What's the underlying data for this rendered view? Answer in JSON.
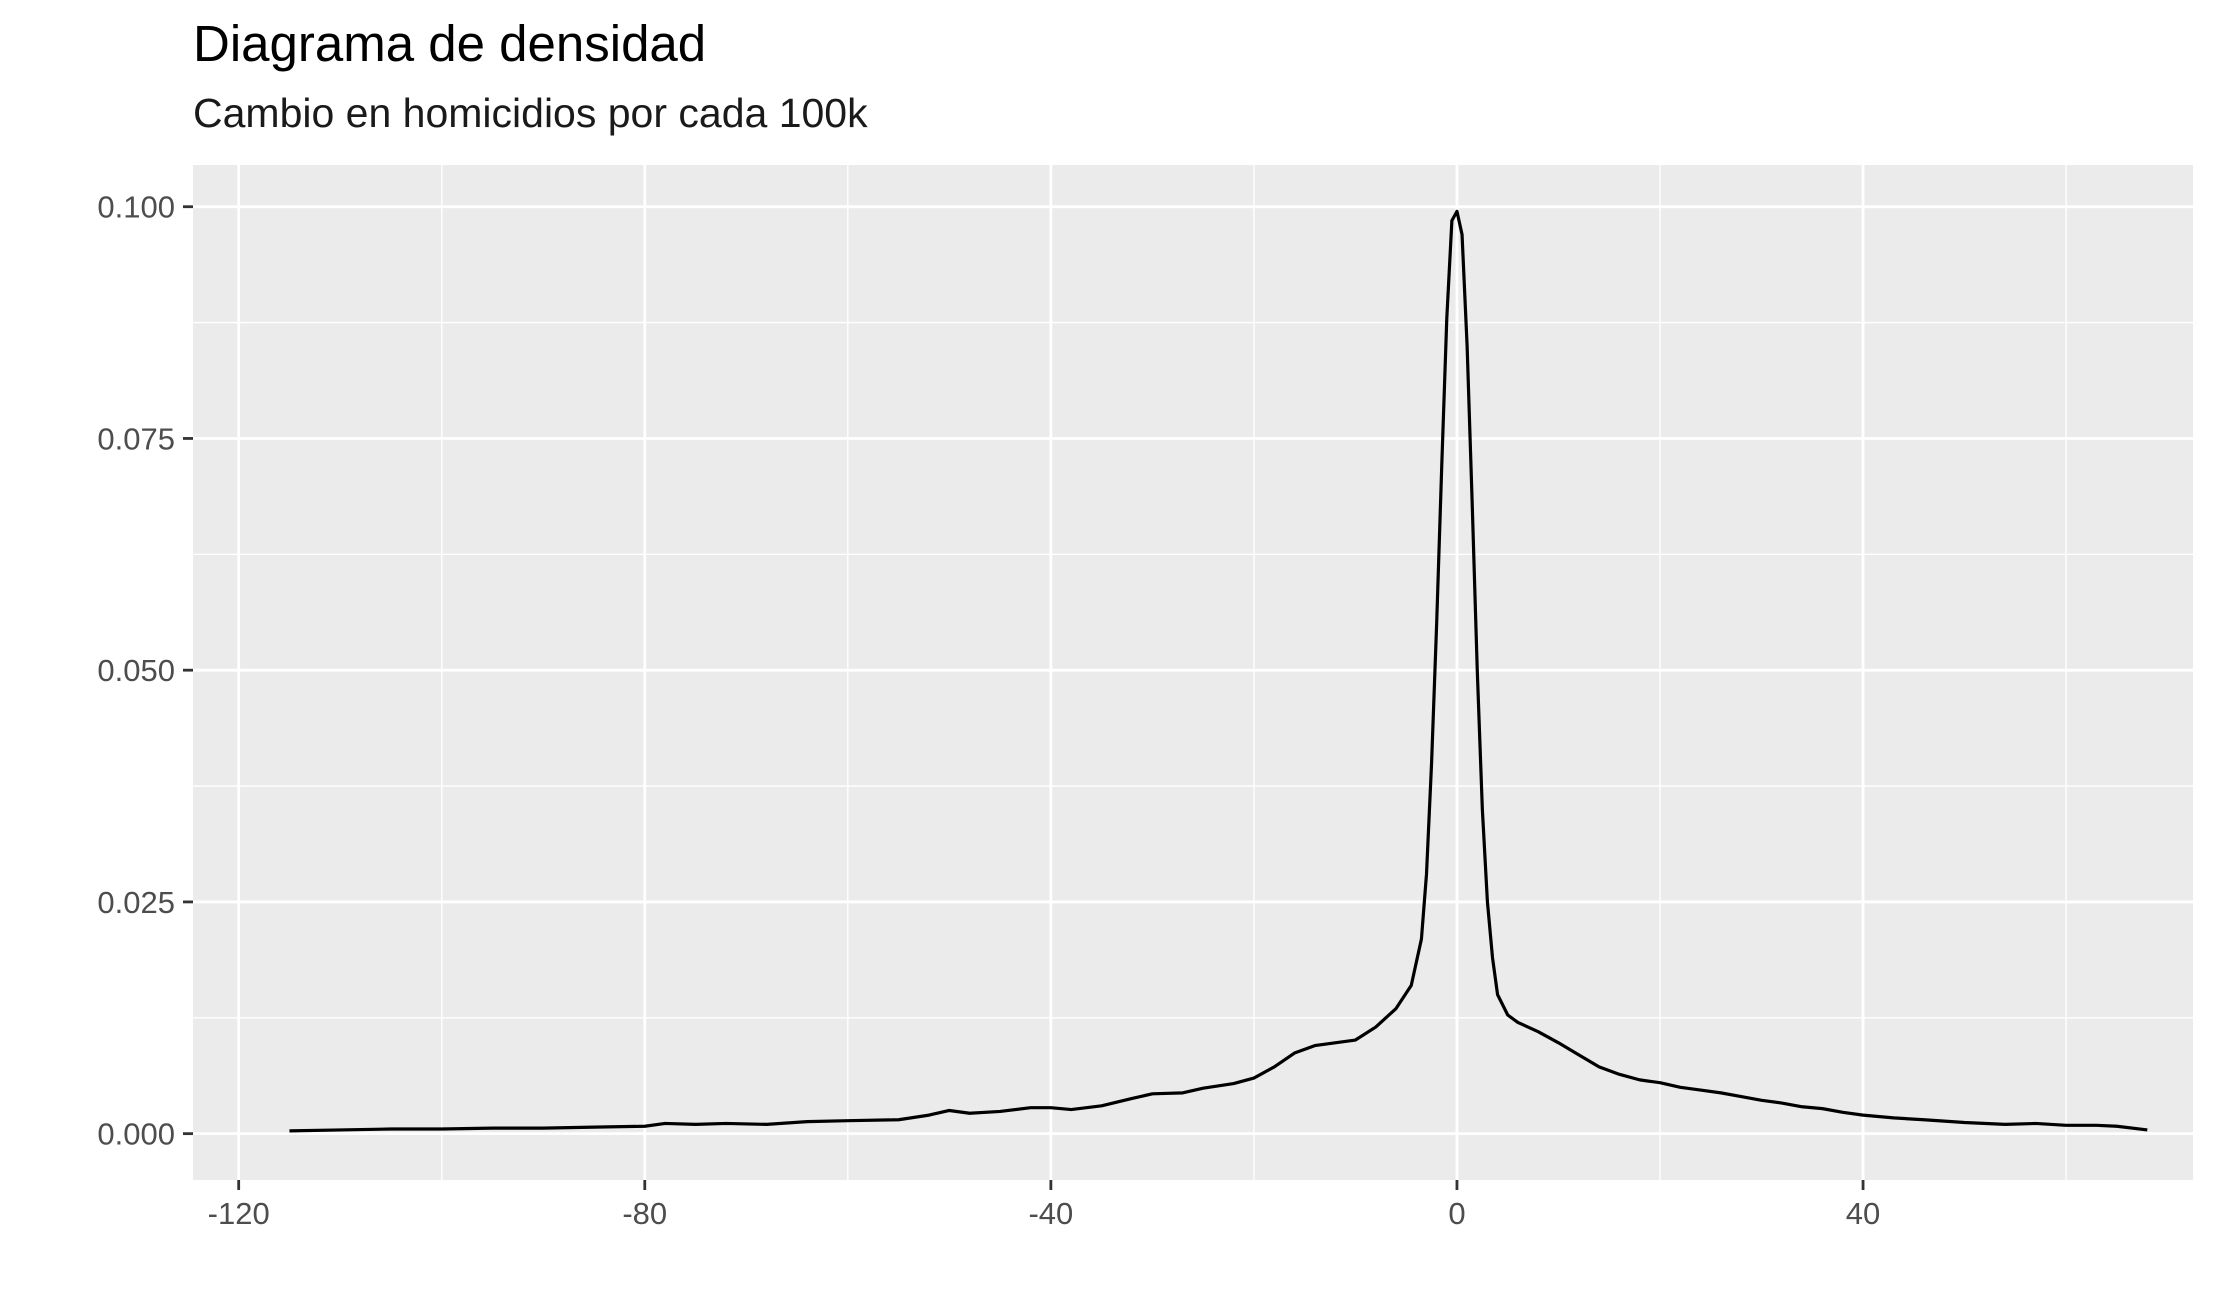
{
  "title": "Diagrama de densidad",
  "subtitle": "Cambio en homicidios por cada 100k",
  "chart_data": {
    "type": "line",
    "title": "Diagrama de densidad",
    "subtitle": "Cambio en homicidios por cada 100k",
    "xlabel": "",
    "ylabel": "",
    "xlim": [
      -124.5,
      72.5
    ],
    "ylim": [
      -0.005,
      0.1045
    ],
    "x_ticks": [
      -120,
      -80,
      -40,
      0,
      40
    ],
    "x_tick_labels": [
      "-120",
      "-80",
      "-40",
      "0",
      "40"
    ],
    "y_ticks": [
      0.0,
      0.025,
      0.05,
      0.075,
      0.1
    ],
    "y_tick_labels": [
      "0.000",
      "0.025",
      "0.050",
      "0.075",
      "0.100"
    ],
    "grid": true,
    "background": "#ebebeb",
    "line_color": "#000000",
    "series": [
      {
        "x": [
          -115,
          -110,
          -105,
          -100,
          -95,
          -90,
          -85,
          -80,
          -78,
          -75,
          -72,
          -68,
          -64,
          -60,
          -55,
          -52,
          -50,
          -48,
          -45,
          -42,
          -40,
          -38,
          -35,
          -32,
          -30,
          -27,
          -25,
          -22,
          -20,
          -18,
          -16,
          -14,
          -12,
          -10,
          -8,
          -6,
          -4.5,
          -3.5,
          -3,
          -2.5,
          -2,
          -1.5,
          -1,
          -0.5,
          0,
          0.5,
          1,
          1.5,
          2,
          2.5,
          3,
          3.5,
          4,
          5,
          6,
          8,
          10,
          12,
          14,
          16,
          18,
          20,
          22,
          24,
          26,
          28,
          30,
          32,
          34,
          36,
          38,
          40,
          43,
          46,
          50,
          54,
          57,
          60,
          63,
          65,
          68
        ],
        "y": [
          0.0003,
          0.0004,
          0.0005,
          0.0005,
          0.0006,
          0.0006,
          0.0007,
          0.0008,
          0.0011,
          0.001,
          0.0011,
          0.001,
          0.0013,
          0.0014,
          0.0015,
          0.002,
          0.0025,
          0.0022,
          0.0024,
          0.0028,
          0.0028,
          0.0026,
          0.003,
          0.0038,
          0.0043,
          0.0044,
          0.0049,
          0.0054,
          0.006,
          0.0072,
          0.0087,
          0.0095,
          0.0098,
          0.0101,
          0.0115,
          0.0135,
          0.016,
          0.021,
          0.028,
          0.04,
          0.055,
          0.072,
          0.088,
          0.0985,
          0.0995,
          0.097,
          0.085,
          0.068,
          0.05,
          0.035,
          0.025,
          0.019,
          0.015,
          0.0128,
          0.012,
          0.011,
          0.0098,
          0.0085,
          0.0072,
          0.0064,
          0.0058,
          0.0055,
          0.005,
          0.0047,
          0.0044,
          0.004,
          0.0036,
          0.0033,
          0.0029,
          0.0027,
          0.0023,
          0.002,
          0.0017,
          0.0015,
          0.0012,
          0.001,
          0.0011,
          0.0009,
          0.0009,
          0.0008,
          0.0004
        ]
      }
    ]
  }
}
